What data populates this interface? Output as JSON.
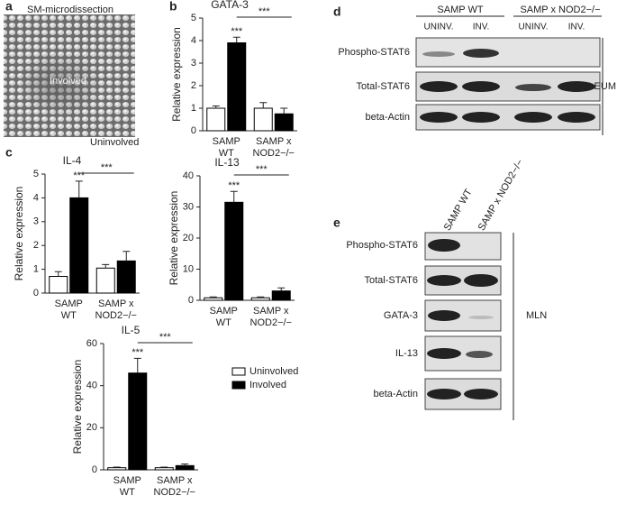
{
  "panel_labels": [
    "a",
    "b",
    "c",
    "d",
    "e"
  ],
  "image_panel": {
    "title": "SM-microdissection",
    "labels": [
      "Involved",
      "Uninvolved"
    ]
  },
  "chart_data": [
    {
      "type": "bar",
      "title": "GATA-3",
      "ylabel": "Relative expression",
      "categories": [
        [
          "SAMP",
          "WT"
        ],
        [
          "SAMP x",
          "NOD2−/−"
        ]
      ],
      "series": [
        {
          "name": "Uninvolved",
          "color": "#ffffff",
          "values": [
            1.0,
            1.0
          ],
          "errors": [
            0.1,
            0.25
          ]
        },
        {
          "name": "Involved",
          "color": "#000000",
          "values": [
            3.9,
            0.75
          ],
          "errors": [
            0.25,
            0.25
          ]
        }
      ],
      "annotations": [
        "***",
        "***"
      ],
      "ylim": [
        0,
        5
      ],
      "yticks": [
        0,
        1,
        2,
        3,
        4,
        5
      ]
    },
    {
      "type": "bar",
      "title": "IL-4",
      "ylabel": "Relative expression",
      "categories": [
        [
          "SAMP",
          "WT"
        ],
        [
          "SAMP x",
          "NOD2−/−"
        ]
      ],
      "series": [
        {
          "name": "Uninvolved",
          "color": "#ffffff",
          "values": [
            0.7,
            1.05
          ],
          "errors": [
            0.2,
            0.15
          ]
        },
        {
          "name": "Involved",
          "color": "#000000",
          "values": [
            4.0,
            1.35
          ],
          "errors": [
            0.7,
            0.4
          ]
        }
      ],
      "annotations": [
        "***",
        "***"
      ],
      "ylim": [
        0,
        5
      ],
      "yticks": [
        0,
        1,
        2,
        3,
        4,
        5
      ]
    },
    {
      "type": "bar",
      "title": "IL-13",
      "ylabel": "Relative expression",
      "categories": [
        [
          "SAMP",
          "WT"
        ],
        [
          "SAMP x",
          "NOD2−/−"
        ]
      ],
      "series": [
        {
          "name": "Uninvolved",
          "color": "#ffffff",
          "values": [
            0.8,
            0.8
          ],
          "errors": [
            0.3,
            0.3
          ]
        },
        {
          "name": "Involved",
          "color": "#000000",
          "values": [
            31.5,
            3
          ],
          "errors": [
            3.5,
            1
          ]
        }
      ],
      "annotations": [
        "***",
        "***"
      ],
      "ylim": [
        0,
        40
      ],
      "yticks": [
        0,
        10,
        20,
        30,
        40
      ]
    },
    {
      "type": "bar",
      "title": "IL-5",
      "ylabel": "Relative expression",
      "categories": [
        [
          "SAMP",
          "WT"
        ],
        [
          "SAMP x",
          "NOD2−/−"
        ]
      ],
      "series": [
        {
          "name": "Uninvolved",
          "color": "#ffffff",
          "values": [
            1,
            1
          ],
          "errors": [
            0.3,
            0.3
          ]
        },
        {
          "name": "Involved",
          "color": "#000000",
          "values": [
            46,
            2
          ],
          "errors": [
            7,
            0.8
          ]
        }
      ],
      "annotations": [
        "***",
        "***"
      ],
      "ylim": [
        0,
        60
      ],
      "yticks": [
        0,
        20,
        40,
        60
      ],
      "legend": true
    }
  ],
  "blot_d": {
    "groups": [
      "SAMP WT",
      "SAMP x NOD2−/−"
    ],
    "lanes": [
      "UNINV.",
      "INV.",
      "UNINV.",
      "INV."
    ],
    "rows": [
      "Phospho-STAT6",
      "Total-STAT6",
      "beta-Actin"
    ],
    "tissue": "ILEUM"
  },
  "blot_e": {
    "lanes": [
      "SAMP WT",
      "SAMP x NOD2−/−"
    ],
    "rows": [
      "Phospho-STAT6",
      "Total-STAT6",
      "GATA-3",
      "IL-13",
      "beta-Actin"
    ],
    "tissue": "MLN"
  }
}
